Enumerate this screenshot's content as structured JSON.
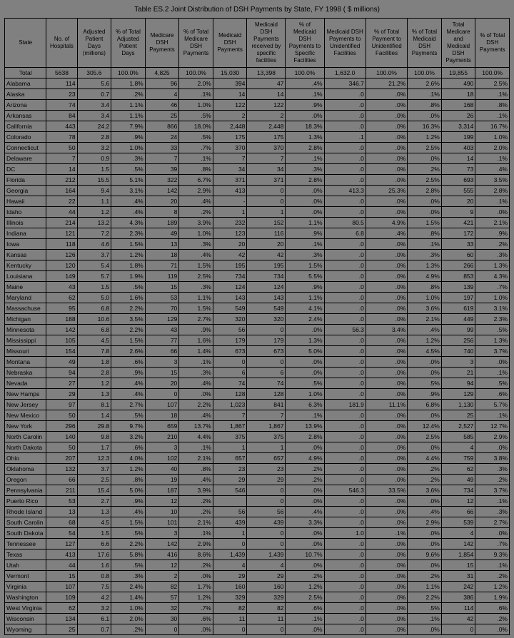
{
  "title": "Table ES.2  Joint Distribution of  DSH Payments by State, FY 1998 ( $ millions)",
  "columns": [
    "State",
    "No. of Hospitals",
    "Adjusted Patient Days (millions)",
    "% of Total Adjusted Patient Days",
    "Medicare DSH Payments",
    "% of Total Medicare DSH Payments",
    "Medicaid DSH Payments",
    "Medicaid DSH Payments received by specific facilities",
    "% of Medicaid DSH Payments to Specific Facilities",
    "Medicaid DSH Payments to Unidentified Facilities",
    "% of Total Payment to Unidentified Facilities",
    "% of Total Medicaid DSH Payments",
    "Total Medicare and Medicaid DSH Payments",
    "% of Total DSH Payments"
  ],
  "total": [
    "Total",
    "5638",
    "305.6",
    "100.0%",
    "4,825",
    "100.0%",
    "15,030",
    "13,398",
    "100.0%",
    "1,632.0",
    "100.0%",
    "100.0%",
    "19,855",
    "100.0%"
  ],
  "rows": [
    [
      "Alabama",
      "114",
      "5.6",
      "1.8%",
      "96",
      "2.0%",
      "394",
      "47",
      ".4%",
      "346.7",
      "21.2%",
      "2.6%",
      "490",
      "2.5%"
    ],
    [
      "Alaska",
      "23",
      "0.7",
      ".2%",
      "4",
      ".1%",
      "14",
      "14",
      ".1%",
      ".0",
      ".0%",
      ".1%",
      "18",
      ".1%"
    ],
    [
      "Arizona",
      "74",
      "3.4",
      "1.1%",
      "46",
      "1.0%",
      "122",
      "122",
      ".9%",
      ".0",
      ".0%",
      ".8%",
      "168",
      ".8%"
    ],
    [
      "Arkansas",
      "84",
      "3.4",
      "1.1%",
      "25",
      ".5%",
      "2",
      "2",
      ".0%",
      ".0",
      ".0%",
      ".0%",
      "26",
      ".1%"
    ],
    [
      "California",
      "443",
      "24.2",
      "7.9%",
      "866",
      "18.0%",
      "2,448",
      "2,448",
      "18.3%",
      ".0",
      ".0%",
      "16.3%",
      "3,314",
      "16.7%"
    ],
    [
      "Colorado",
      "78",
      "2.8",
      ".9%",
      "24",
      ".5%",
      "175",
      "175",
      "1.3%",
      ".1",
      ".0%",
      "1.2%",
      "199",
      "1.0%"
    ],
    [
      "Connecticut",
      "50",
      "3.2",
      "1.0%",
      "33",
      ".7%",
      "370",
      "370",
      "2.8%",
      ".0",
      ".0%",
      "2.5%",
      "403",
      "2.0%"
    ],
    [
      "Delaware",
      "7",
      "0.9",
      ".3%",
      "7",
      ".1%",
      "7",
      "7",
      ".1%",
      ".0",
      ".0%",
      ".0%",
      "14",
      ".1%"
    ],
    [
      "DC",
      "14",
      "1.5",
      ".5%",
      "39",
      ".8%",
      "34",
      "34",
      ".3%",
      ".0",
      ".0%",
      ".2%",
      "73",
      ".4%"
    ],
    [
      "Florida",
      "212",
      "15.5",
      "5.1%",
      "322",
      "6.7%",
      "371",
      "371",
      "2.8%",
      ".0",
      ".0%",
      "2.5%",
      "693",
      "3.5%"
    ],
    [
      "Georgia",
      "164",
      "9.4",
      "3.1%",
      "142",
      "2.9%",
      "413",
      "0",
      ".0%",
      "413.3",
      "25.3%",
      "2.8%",
      "555",
      "2.8%"
    ],
    [
      "Hawaii",
      "22",
      "1.1",
      ".4%",
      "20",
      ".4%",
      "-",
      "0",
      ".0%",
      ".0",
      ".0%",
      ".0%",
      "20",
      ".1%"
    ],
    [
      "Idaho",
      "44",
      "1.2",
      ".4%",
      "8",
      ".2%",
      "1",
      "1",
      ".0%",
      ".0",
      ".0%",
      ".0%",
      "9",
      ".0%"
    ],
    [
      "Illinois",
      "214",
      "13.2",
      "4.3%",
      "189",
      "3.9%",
      "232",
      "152",
      "1.1%",
      "80.5",
      "4.9%",
      "1.5%",
      "421",
      "2.1%"
    ],
    [
      "Indiana",
      "121",
      "7.2",
      "2.3%",
      "49",
      "1.0%",
      "123",
      "116",
      ".9%",
      "6.8",
      ".4%",
      ".8%",
      "172",
      ".9%"
    ],
    [
      "Iowa",
      "118",
      "4.6",
      "1.5%",
      "13",
      ".3%",
      "20",
      "20",
      ".1%",
      ".0",
      ".0%",
      ".1%",
      "33",
      ".2%"
    ],
    [
      "Kansas",
      "126",
      "3.7",
      "1.2%",
      "18",
      ".4%",
      "42",
      "42",
      ".3%",
      ".0",
      ".0%",
      ".3%",
      "60",
      ".3%"
    ],
    [
      "Kentucky",
      "120",
      "5.4",
      "1.8%",
      "71",
      "1.5%",
      "195",
      "195",
      "1.5%",
      ".0",
      ".0%",
      "1.3%",
      "266",
      "1.3%"
    ],
    [
      "Louisiana",
      "149",
      "5.7",
      "1.9%",
      "119",
      "2.5%",
      "734",
      "734",
      "5.5%",
      ".0",
      ".0%",
      "4.9%",
      "853",
      "4.3%"
    ],
    [
      "Maine",
      "43",
      "1.5",
      ".5%",
      "15",
      ".3%",
      "124",
      "124",
      ".9%",
      ".0",
      ".0%",
      ".8%",
      "139",
      ".7%"
    ],
    [
      "Maryland",
      "62",
      "5.0",
      "1.6%",
      "53",
      "1.1%",
      "143",
      "143",
      "1.1%",
      ".0",
      ".0%",
      "1.0%",
      "197",
      "1.0%"
    ],
    [
      "Massachuse",
      "95",
      "6.8",
      "2.2%",
      "70",
      "1.5%",
      "549",
      "549",
      "4.1%",
      ".0",
      ".0%",
      "3.6%",
      "619",
      "3.1%"
    ],
    [
      "Michigan",
      "188",
      "10.6",
      "3.5%",
      "129",
      "2.7%",
      "320",
      "320",
      "2.4%",
      ".0",
      ".0%",
      "2.1%",
      "449",
      "2.3%"
    ],
    [
      "Minnesota",
      "142",
      "6.8",
      "2.2%",
      "43",
      ".9%",
      "56",
      "0",
      ".0%",
      "56.3",
      "3.4%",
      ".4%",
      "99",
      ".5%"
    ],
    [
      "Mississippi",
      "105",
      "4.5",
      "1.5%",
      "77",
      "1.6%",
      "179",
      "179",
      "1.3%",
      ".0",
      ".0%",
      "1.2%",
      "256",
      "1.3%"
    ],
    [
      "Missouri",
      "154",
      "7.8",
      "2.6%",
      "66",
      "1.4%",
      "673",
      "673",
      "5.0%",
      ".0",
      ".0%",
      "4.5%",
      "740",
      "3.7%"
    ],
    [
      "Montana",
      "49",
      "1.8",
      ".6%",
      "3",
      ".1%",
      "0",
      "0",
      ".0%",
      ".0",
      ".0%",
      ".0%",
      "3",
      ".0%"
    ],
    [
      "Nebraska",
      "94",
      "2.8",
      ".9%",
      "15",
      ".3%",
      "6",
      "6",
      ".0%",
      ".0",
      ".0%",
      ".0%",
      "21",
      ".1%"
    ],
    [
      "Nevada",
      "27",
      "1.2",
      ".4%",
      "20",
      ".4%",
      "74",
      "74",
      ".5%",
      ".0",
      ".0%",
      ".5%",
      "94",
      ".5%"
    ],
    [
      "New Hamps",
      "29",
      "1.3",
      ".4%",
      "0",
      ".0%",
      "128",
      "128",
      "1.0%",
      ".0",
      ".0%",
      ".9%",
      "129",
      ".6%"
    ],
    [
      "New Jersey",
      "97",
      "8.1",
      "2.7%",
      "107",
      "2.2%",
      "1,023",
      "841",
      "6.3%",
      "181.9",
      "11.1%",
      "6.8%",
      "1,130",
      "5.7%"
    ],
    [
      "New Mexico",
      "50",
      "1.4",
      ".5%",
      "18",
      ".4%",
      "7",
      "7",
      ".1%",
      ".0",
      ".0%",
      ".0%",
      "25",
      ".1%"
    ],
    [
      "New York",
      "296",
      "29.8",
      "9.7%",
      "659",
      "13.7%",
      "1,867",
      "1,867",
      "13.9%",
      ".0",
      ".0%",
      "12.4%",
      "2,527",
      "12.7%"
    ],
    [
      "North Carolin",
      "140",
      "9.8",
      "3.2%",
      "210",
      "4.4%",
      "375",
      "375",
      "2.8%",
      ".0",
      ".0%",
      "2.5%",
      "585",
      "2.9%"
    ],
    [
      "North Dakota",
      "50",
      "1.7",
      ".6%",
      "3",
      ".1%",
      "1",
      "1",
      ".0%",
      ".0",
      ".0%",
      ".0%",
      "4",
      ".0%"
    ],
    [
      "Ohio",
      "207",
      "12.3",
      "4.0%",
      "102",
      "2.1%",
      "657",
      "657",
      "4.9%",
      ".0",
      ".0%",
      "4.4%",
      "759",
      "3.8%"
    ],
    [
      "Oklahoma",
      "132",
      "3.7",
      "1.2%",
      "40",
      ".8%",
      "23",
      "23",
      ".2%",
      ".0",
      ".0%",
      ".2%",
      "62",
      ".3%"
    ],
    [
      "Oregon",
      "66",
      "2.5",
      ".8%",
      "19",
      ".4%",
      "29",
      "29",
      ".2%",
      ".0",
      ".0%",
      ".2%",
      "49",
      ".2%"
    ],
    [
      "Pennsylvania",
      "211",
      "15.4",
      "5.0%",
      "187",
      "3.9%",
      "546",
      "0",
      ".0%",
      "546.3",
      "33.5%",
      "3.6%",
      "734",
      "3.7%"
    ],
    [
      "Puerto Rico",
      "53",
      "2.7",
      ".9%",
      "12",
      ".2%",
      "",
      "0",
      ".0%",
      ".0",
      ".0%",
      ".0%",
      "12",
      ".1%"
    ],
    [
      "Rhode Island",
      "13",
      "1.3",
      ".4%",
      "10",
      ".2%",
      "56",
      "56",
      ".4%",
      ".0",
      ".0%",
      ".4%",
      "66",
      ".3%"
    ],
    [
      "South Carolin",
      "68",
      "4.5",
      "1.5%",
      "101",
      "2.1%",
      "439",
      "439",
      "3.3%",
      ".0",
      ".0%",
      "2.9%",
      "539",
      "2.7%"
    ],
    [
      "South Dakota",
      "54",
      "1.5",
      ".5%",
      "3",
      ".1%",
      "1",
      "0",
      ".0%",
      "1.0",
      ".1%",
      ".0%",
      "4",
      ".0%"
    ],
    [
      "Tennessee",
      "127",
      "6.6",
      "2.2%",
      "142",
      "2.9%",
      "0",
      "0",
      ".0%",
      ".0",
      ".0%",
      ".0%",
      "142",
      ".7%"
    ],
    [
      "Texas",
      "413",
      "17.6",
      "5.8%",
      "416",
      "8.6%",
      "1,439",
      "1,439",
      "10.7%",
      ".0",
      ".0%",
      "9.6%",
      "1,854",
      "9.3%"
    ],
    [
      "Utah",
      "44",
      "1.6",
      ".5%",
      "12",
      ".2%",
      "4",
      "4",
      ".0%",
      ".0",
      ".0%",
      ".0%",
      "15",
      ".1%"
    ],
    [
      "Vermont",
      "15",
      "0.8",
      ".3%",
      "2",
      ".0%",
      "29",
      "29",
      ".2%",
      ".0",
      ".0%",
      ".2%",
      "31",
      ".2%"
    ],
    [
      "Virginia",
      "107",
      "7.5",
      "2.4%",
      "82",
      "1.7%",
      "160",
      "160",
      "1.2%",
      ".0",
      ".0%",
      "1.1%",
      "242",
      "1.2%"
    ],
    [
      "Washington",
      "109",
      "4.2",
      "1.4%",
      "57",
      "1.2%",
      "329",
      "329",
      "2.5%",
      ".0",
      ".0%",
      "2.2%",
      "386",
      "1.9%"
    ],
    [
      "West Virginia",
      "62",
      "3.2",
      "1.0%",
      "32",
      ".7%",
      "82",
      "82",
      ".6%",
      ".0",
      ".0%",
      ".5%",
      "114",
      ".6%"
    ],
    [
      "Wisconsin",
      "134",
      "6.1",
      "2.0%",
      "30",
      ".6%",
      "11",
      "11",
      ".1%",
      ".0",
      ".0%",
      ".1%",
      "42",
      ".2%"
    ],
    [
      "Wyoming",
      "25",
      "0.7",
      ".2%",
      "0",
      ".0%",
      "0",
      "0",
      ".0%",
      ".0",
      ".0%",
      ".0%",
      "0",
      ".0%"
    ]
  ]
}
